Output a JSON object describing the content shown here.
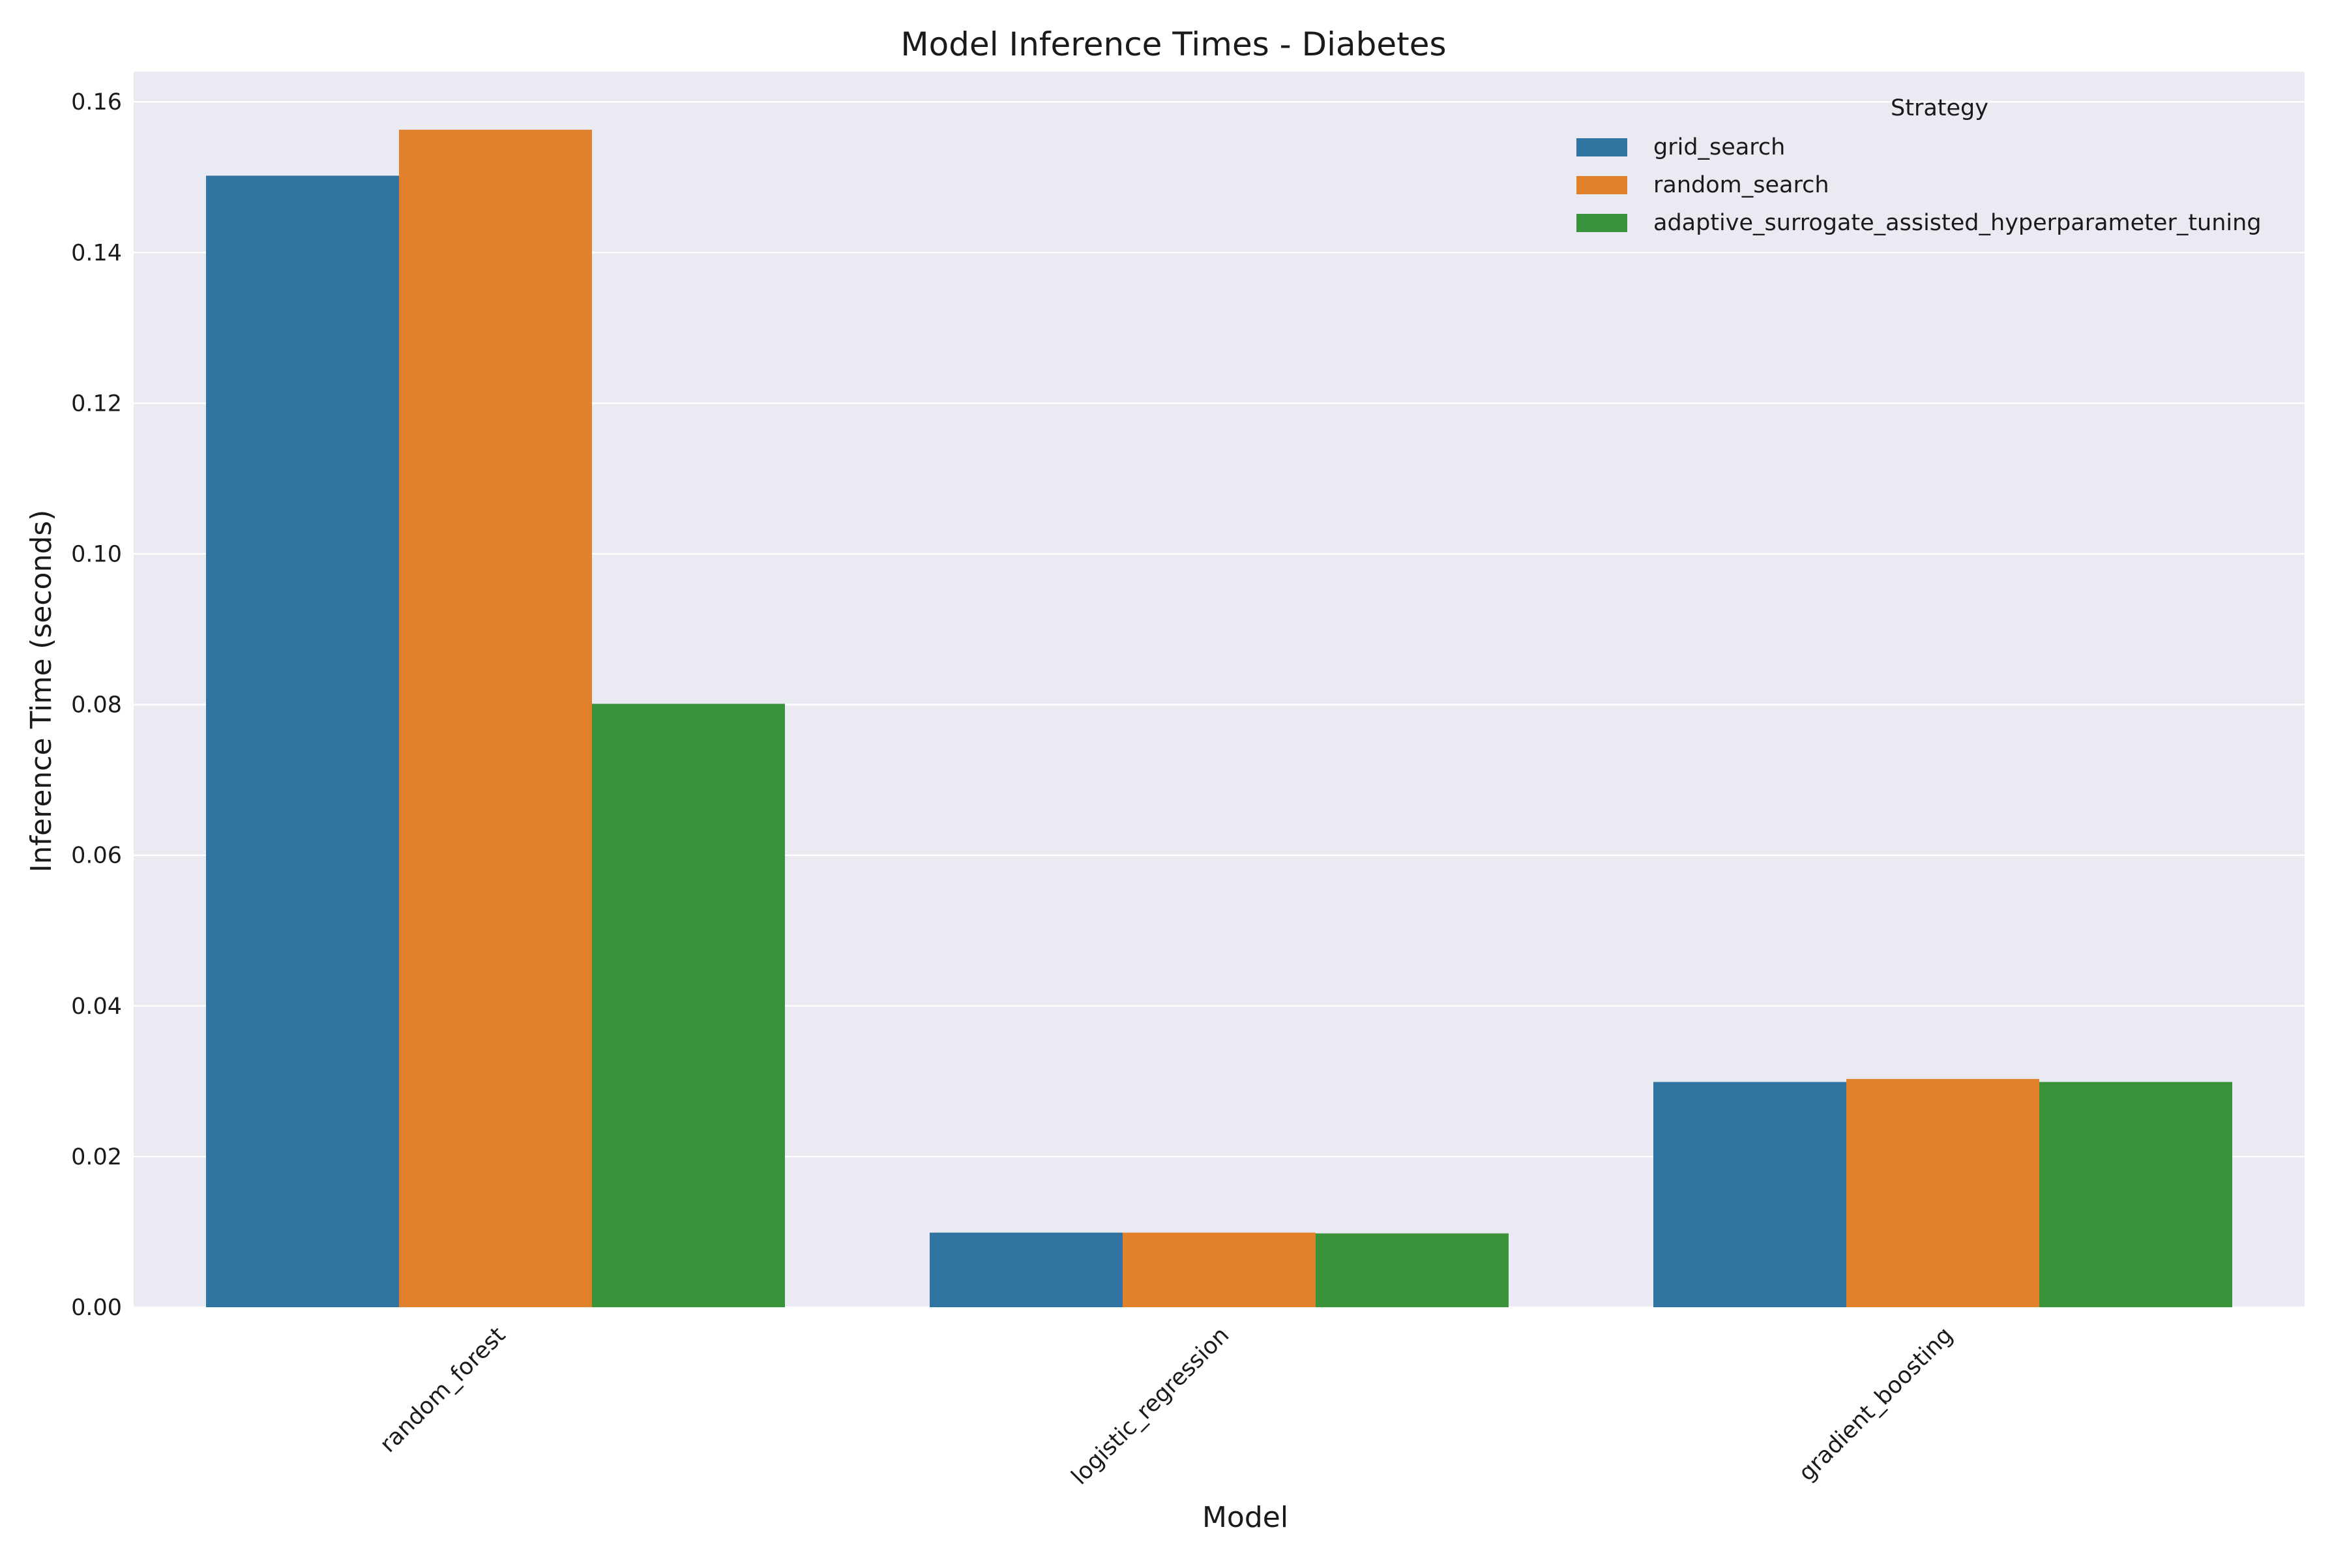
{
  "chart_data": {
    "type": "bar",
    "title": "Model Inference Times - Diabetes",
    "xlabel": "Model",
    "ylabel": "Inference Time (seconds)",
    "categories": [
      "random_forest",
      "logistic_regression",
      "gradient_boosting"
    ],
    "series": [
      {
        "name": "grid_search",
        "color": "#3274a1",
        "values": [
          0.1502,
          0.0099,
          0.0299
        ]
      },
      {
        "name": "random_search",
        "color": "#e1812c",
        "values": [
          0.1563,
          0.0099,
          0.0303
        ]
      },
      {
        "name": "adaptive_surrogate_assisted_hyperparameter_tuning",
        "color": "#3a923a",
        "values": [
          0.0801,
          0.0098,
          0.0299
        ]
      }
    ],
    "ylim": [
      0,
      0.164
    ],
    "yticks": [
      "0.00",
      "0.02",
      "0.04",
      "0.06",
      "0.08",
      "0.10",
      "0.12",
      "0.14",
      "0.16"
    ],
    "legend_title": "Strategy",
    "legend_position": "top-right",
    "grid": true,
    "background_color": "#eaeaf2",
    "grid_color": "#ffffff"
  }
}
